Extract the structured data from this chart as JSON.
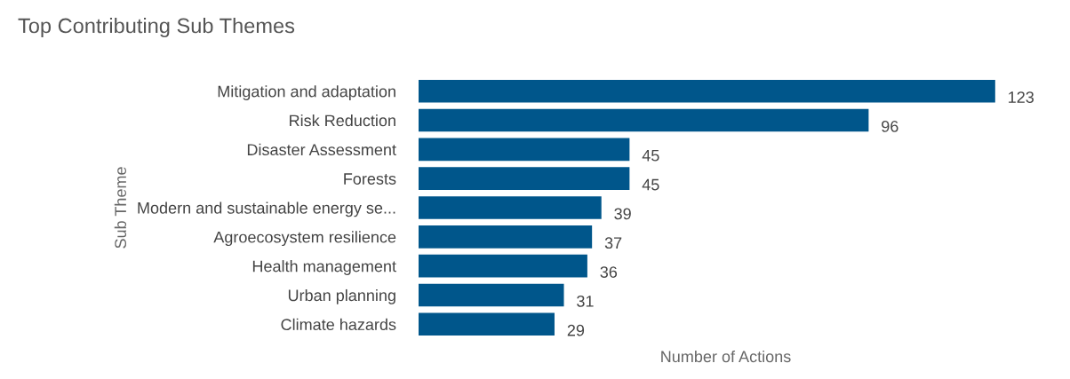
{
  "chart_data": {
    "type": "bar",
    "orientation": "horizontal",
    "title": "Top Contributing Sub Themes",
    "xlabel": "Number of Actions",
    "ylabel": "Sub Theme",
    "categories": [
      "Mitigation and adaptation",
      "Risk Reduction",
      "Disaster Assessment",
      "Forests",
      "Modern and sustainable energy se...",
      "Agroecosystem resilience",
      "Health management",
      "Urban planning",
      "Climate hazards"
    ],
    "values": [
      123,
      96,
      45,
      45,
      39,
      37,
      36,
      31,
      29
    ],
    "color": "#00568b",
    "data_labels": true,
    "grid": false,
    "legend": false
  }
}
